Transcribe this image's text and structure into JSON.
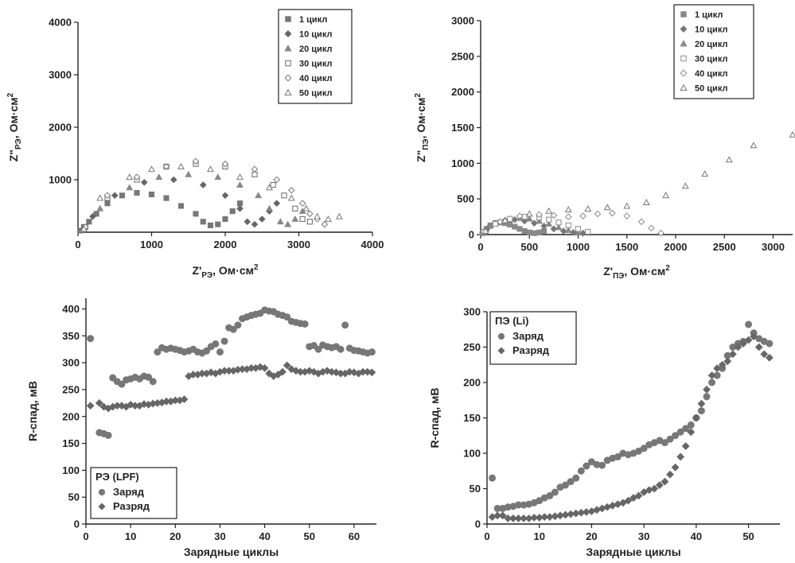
{
  "chart_data": [
    {
      "id": "tl",
      "type": "scatter",
      "xlabel_main": "Z'",
      "xlabel_sub": "РЭ",
      "xlabel_tail": ", Ом·см",
      "xlabel_sup": "2",
      "ylabel_main": "Z\"",
      "ylabel_sub": "РЭ",
      "ylabel_tail": ", Ом·см",
      "ylabel_sup": "2",
      "xlim": [
        0,
        4000
      ],
      "ylim": [
        0,
        4000
      ],
      "xticks": [
        0,
        1000,
        2000,
        3000,
        4000
      ],
      "yticks": [
        1000,
        2000,
        3000,
        4000
      ],
      "legend_position": "top-right",
      "series": [
        {
          "name": "1 цикл",
          "marker": "square",
          "color": "#777",
          "x": [
            30,
            80,
            150,
            250,
            400,
            600,
            800,
            1000,
            1200,
            1400,
            1600,
            1700,
            1800,
            1900,
            2000,
            2100,
            2200
          ],
          "y": [
            30,
            100,
            200,
            350,
            550,
            700,
            750,
            720,
            650,
            500,
            350,
            200,
            130,
            150,
            250,
            400,
            550
          ]
        },
        {
          "name": "10 цикл",
          "marker": "diamond",
          "color": "#666",
          "x": [
            60,
            200,
            500,
            900,
            1300,
            1700,
            2000,
            2200,
            2300,
            2400,
            2500,
            2600,
            2700
          ],
          "y": [
            50,
            300,
            700,
            950,
            1000,
            900,
            700,
            450,
            200,
            150,
            250,
            400,
            550
          ]
        },
        {
          "name": "20 цикл",
          "marker": "triangle",
          "color": "#888",
          "x": [
            60,
            300,
            700,
            1100,
            1500,
            1900,
            2200,
            2450,
            2600,
            2750,
            2850,
            2950,
            3050
          ],
          "y": [
            50,
            450,
            850,
            1050,
            1100,
            1050,
            900,
            700,
            450,
            200,
            150,
            250,
            400
          ]
        },
        {
          "name": "30 цикл",
          "marker": "open-square",
          "color": "#666",
          "x": [
            100,
            400,
            800,
            1200,
            1600,
            2000,
            2400,
            2650,
            2800,
            2950,
            3050,
            3150
          ],
          "y": [
            100,
            650,
            1000,
            1250,
            1300,
            1250,
            1100,
            900,
            700,
            450,
            250,
            200
          ]
        },
        {
          "name": "40 цикл",
          "marker": "open-diamond",
          "color": "#777",
          "x": [
            100,
            400,
            800,
            1200,
            1600,
            2000,
            2400,
            2700,
            2900,
            3050,
            3150,
            3250,
            3350
          ],
          "y": [
            100,
            700,
            1050,
            1250,
            1350,
            1300,
            1200,
            1000,
            800,
            550,
            350,
            250,
            150
          ]
        },
        {
          "name": "50 цикл",
          "marker": "open-triangle",
          "color": "#777",
          "x": [
            80,
            300,
            700,
            1000,
            1400,
            1800,
            2200,
            2600,
            2900,
            3100,
            3250,
            3400,
            3550
          ],
          "y": [
            60,
            650,
            1050,
            1200,
            1250,
            1200,
            1050,
            850,
            650,
            450,
            300,
            250,
            300
          ]
        }
      ]
    },
    {
      "id": "tr",
      "type": "scatter",
      "xlabel_main": "Z'",
      "xlabel_sub": "ПЭ",
      "xlabel_tail": ", Ом·см",
      "xlabel_sup": "2",
      "ylabel_main": "Z\"",
      "ylabel_sub": "ПЭ",
      "ylabel_tail": ", Ом·см",
      "ylabel_sup": "2",
      "xlim": [
        0,
        3200
      ],
      "ylim": [
        0,
        3000
      ],
      "xticks": [
        0,
        500,
        1000,
        1500,
        2000,
        2500,
        3000
      ],
      "yticks": [
        0,
        500,
        1000,
        1500,
        2000,
        2500,
        3000
      ],
      "legend_position": "top-right",
      "series": [
        {
          "name": "1 цикл",
          "marker": "square",
          "color": "#888",
          "x": [
            20,
            60,
            100,
            150,
            200,
            250,
            300,
            350,
            400,
            450,
            500,
            550,
            600,
            650
          ],
          "y": [
            20,
            80,
            130,
            160,
            170,
            160,
            140,
            110,
            80,
            50,
            30,
            20,
            30,
            50
          ]
        },
        {
          "name": "10 цикл",
          "marker": "diamond",
          "color": "#777",
          "x": [
            20,
            80,
            150,
            250,
            350,
            450,
            550,
            650,
            750,
            850,
            950,
            1050
          ],
          "y": [
            30,
            100,
            160,
            200,
            210,
            190,
            160,
            120,
            80,
            50,
            30,
            20
          ]
        },
        {
          "name": "20 цикл",
          "marker": "triangle",
          "color": "#888",
          "x": [
            20,
            100,
            200,
            300,
            400,
            500,
            600,
            700,
            800,
            900,
            1000
          ],
          "y": [
            30,
            120,
            180,
            220,
            230,
            220,
            190,
            150,
            100,
            60,
            30
          ]
        },
        {
          "name": "30 цикл",
          "marker": "open-square",
          "color": "#888",
          "x": [
            30,
            150,
            300,
            450,
            600,
            700,
            800,
            900,
            1000,
            1100
          ],
          "y": [
            40,
            150,
            220,
            250,
            240,
            210,
            170,
            130,
            80,
            40
          ]
        },
        {
          "name": "40 цикл",
          "marker": "open-diamond",
          "color": "#888",
          "x": [
            30,
            200,
            400,
            600,
            750,
            900,
            1050,
            1200,
            1350,
            1500,
            1650,
            1750,
            1850
          ],
          "y": [
            40,
            180,
            260,
            280,
            270,
            250,
            260,
            290,
            300,
            260,
            180,
            90,
            20
          ]
        },
        {
          "name": "50 цикл",
          "marker": "open-triangle",
          "color": "#777",
          "x": [
            50,
            250,
            500,
            700,
            900,
            1100,
            1300,
            1500,
            1700,
            1900,
            2100,
            2300,
            2550,
            2800,
            3200
          ],
          "y": [
            50,
            200,
            290,
            330,
            350,
            360,
            380,
            400,
            450,
            550,
            680,
            850,
            1050,
            1250,
            1400
          ]
        }
      ]
    },
    {
      "id": "bl",
      "type": "scatter",
      "xlabel_main": "Зарядные циклы",
      "ylabel_main": "R-спад, мВ",
      "xlim": [
        0,
        65
      ],
      "ylim": [
        0,
        420
      ],
      "xticks": [
        0,
        10,
        20,
        30,
        40,
        50,
        60
      ],
      "yticks": [
        0,
        50,
        100,
        150,
        200,
        250,
        300,
        350,
        400
      ],
      "legend_position": "bottom-left",
      "legend_title": "РЭ (LPF)",
      "series": [
        {
          "name": "Заряд",
          "marker": "circle",
          "color": "#777",
          "x": [
            1,
            3,
            4,
            5,
            6,
            7,
            8,
            9,
            10,
            11,
            12,
            13,
            14,
            15,
            16,
            17,
            18,
            19,
            20,
            21,
            22,
            23,
            24,
            25,
            26,
            27,
            28,
            29,
            30,
            31,
            32,
            33,
            34,
            35,
            36,
            37,
            38,
            39,
            40,
            41,
            42,
            43,
            44,
            45,
            46,
            47,
            48,
            49,
            50,
            51,
            52,
            53,
            54,
            55,
            56,
            57,
            58,
            59,
            60,
            61,
            62,
            63,
            64
          ],
          "y": [
            345,
            170,
            168,
            165,
            272,
            265,
            260,
            268,
            270,
            273,
            270,
            275,
            273,
            265,
            320,
            328,
            325,
            327,
            325,
            323,
            320,
            322,
            325,
            320,
            318,
            322,
            330,
            335,
            320,
            340,
            365,
            362,
            370,
            382,
            385,
            388,
            390,
            392,
            398,
            396,
            395,
            390,
            388,
            385,
            377,
            375,
            373,
            372,
            330,
            332,
            325,
            333,
            330,
            328,
            330,
            325,
            370,
            327,
            323,
            322,
            320,
            318,
            320
          ]
        },
        {
          "name": "Разряд",
          "marker": "diamond",
          "color": "#666",
          "x": [
            1,
            3,
            4,
            5,
            6,
            7,
            8,
            9,
            10,
            11,
            12,
            13,
            14,
            15,
            16,
            17,
            18,
            19,
            20,
            21,
            22,
            23,
            24,
            25,
            26,
            27,
            28,
            29,
            30,
            31,
            32,
            33,
            34,
            35,
            36,
            37,
            38,
            39,
            40,
            41,
            42,
            43,
            44,
            45,
            46,
            47,
            48,
            49,
            50,
            51,
            52,
            53,
            54,
            55,
            56,
            57,
            58,
            59,
            60,
            61,
            62,
            63,
            64
          ],
          "y": [
            220,
            225,
            218,
            215,
            218,
            220,
            220,
            218,
            222,
            220,
            220,
            223,
            222,
            224,
            225,
            226,
            228,
            228,
            230,
            230,
            232,
            275,
            278,
            278,
            280,
            280,
            282,
            280,
            283,
            285,
            285,
            285,
            287,
            288,
            288,
            290,
            290,
            292,
            290,
            280,
            275,
            278,
            283,
            295,
            288,
            285,
            283,
            283,
            285,
            283,
            280,
            283,
            285,
            283,
            282,
            280,
            280,
            283,
            282,
            280,
            283,
            283,
            282
          ]
        }
      ]
    },
    {
      "id": "br",
      "type": "scatter",
      "xlabel_main": "Зарядные циклы",
      "ylabel_main": "R-спад, мВ",
      "xlim": [
        0,
        56
      ],
      "ylim": [
        0,
        300
      ],
      "xticks": [
        0,
        10,
        20,
        30,
        40,
        50
      ],
      "yticks": [
        0,
        50,
        100,
        150,
        200,
        250,
        300
      ],
      "legend_position": "top-left",
      "legend_title": "ПЭ (Li)",
      "series": [
        {
          "name": "Заряд",
          "marker": "circle",
          "color": "#777",
          "x": [
            1,
            2,
            3,
            4,
            5,
            6,
            7,
            8,
            9,
            10,
            11,
            12,
            13,
            14,
            15,
            16,
            17,
            18,
            19,
            20,
            21,
            22,
            23,
            24,
            25,
            26,
            27,
            28,
            29,
            30,
            31,
            32,
            33,
            34,
            35,
            36,
            37,
            38,
            39,
            40,
            41,
            42,
            43,
            44,
            45,
            46,
            47,
            48,
            49,
            50,
            51,
            52,
            53,
            54
          ],
          "y": [
            65,
            22,
            22,
            24,
            25,
            27,
            27,
            28,
            30,
            33,
            37,
            40,
            45,
            52,
            55,
            60,
            65,
            75,
            82,
            88,
            84,
            83,
            90,
            93,
            95,
            100,
            98,
            100,
            103,
            107,
            112,
            115,
            118,
            115,
            120,
            125,
            130,
            135,
            140,
            150,
            160,
            180,
            200,
            210,
            220,
            238,
            250,
            255,
            258,
            282,
            270,
            262,
            258,
            255
          ]
        },
        {
          "name": "Разряд",
          "marker": "diamond",
          "color": "#666",
          "x": [
            1,
            2,
            3,
            4,
            5,
            6,
            7,
            8,
            9,
            10,
            11,
            12,
            13,
            14,
            15,
            16,
            17,
            18,
            19,
            20,
            21,
            22,
            23,
            24,
            25,
            26,
            27,
            28,
            29,
            30,
            31,
            32,
            33,
            34,
            35,
            36,
            37,
            38,
            39,
            40,
            41,
            42,
            43,
            44,
            45,
            46,
            47,
            48,
            49,
            50,
            51,
            52,
            53,
            54
          ],
          "y": [
            10,
            12,
            12,
            8,
            8,
            8,
            8,
            8,
            9,
            9,
            10,
            10,
            11,
            12,
            13,
            14,
            15,
            16,
            17,
            18,
            20,
            22,
            24,
            26,
            28,
            30,
            33,
            37,
            40,
            45,
            48,
            50,
            55,
            60,
            70,
            80,
            95,
            110,
            130,
            150,
            170,
            190,
            210,
            220,
            225,
            230,
            240,
            250,
            255,
            260,
            265,
            250,
            240,
            235
          ]
        }
      ]
    }
  ]
}
